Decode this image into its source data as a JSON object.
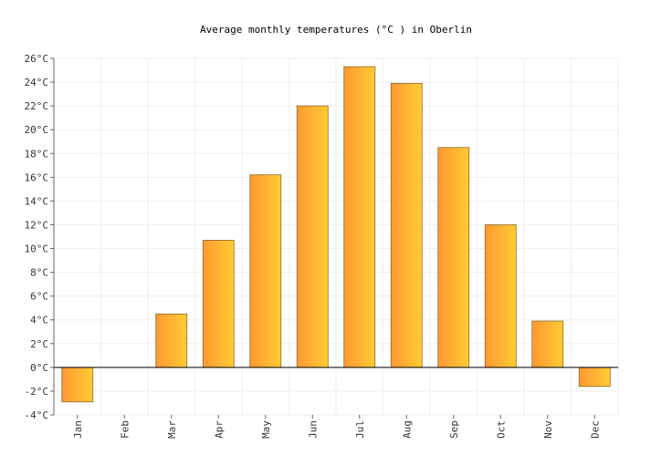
{
  "chart_data": {
    "type": "bar",
    "title": "Average monthly temperatures (°C ) in Oberlin",
    "xlabel": "",
    "ylabel": "",
    "categories": [
      "Jan",
      "Feb",
      "Mar",
      "Apr",
      "May",
      "Jun",
      "Jul",
      "Aug",
      "Sep",
      "Oct",
      "Nov",
      "Dec"
    ],
    "values": [
      -2.9,
      0,
      4.5,
      10.7,
      16.2,
      22.0,
      25.3,
      23.9,
      18.5,
      12.0,
      3.9,
      -1.6
    ],
    "ylim": [
      -4,
      26
    ],
    "yticks": [
      -4,
      -2,
      0,
      2,
      4,
      6,
      8,
      10,
      12,
      14,
      16,
      18,
      20,
      22,
      24,
      26
    ],
    "ytick_labels": [
      "-4°C",
      "-2°C",
      "0°C",
      "2°C",
      "4°C",
      "6°C",
      "8°C",
      "10°C",
      "12°C",
      "14°C",
      "16°C",
      "18°C",
      "20°C",
      "22°C",
      "24°C",
      "26°C"
    ],
    "grid": true,
    "legend": "none",
    "colors": {
      "bar_gradient_start": "#ff9933",
      "bar_gradient_end": "#ffcc33",
      "bar_stroke": "#8a6a30"
    }
  }
}
